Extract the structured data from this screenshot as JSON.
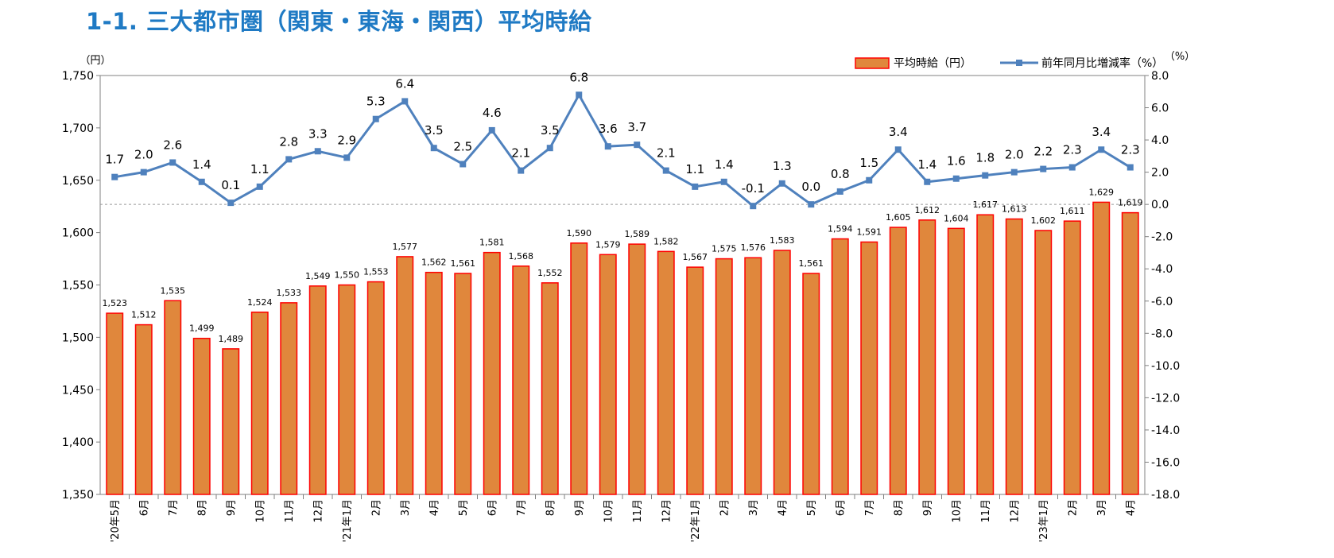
{
  "title": "1-1. 三大都市圏（関東・東海・関西）平均時給",
  "colors": {
    "title": "#1f7ac4",
    "bar_fill": "#e0873c",
    "bar_stroke": "#ff0000",
    "line": "#4f81bd",
    "zero_line": "#999999"
  },
  "chart_data": {
    "type": "bar",
    "title": "",
    "y_left_unit": "（円）",
    "y_right_unit": "（%）",
    "ylim_left": [
      1350,
      1750
    ],
    "ylim_right": [
      -18.0,
      8.0
    ],
    "y_left_ticks": [
      "1,350",
      "1,400",
      "1,450",
      "1,500",
      "1,550",
      "1,600",
      "1,650",
      "1,700",
      "1,750"
    ],
    "y_right_ticks": [
      "-18.0",
      "-16.0",
      "-14.0",
      "-12.0",
      "-10.0",
      "-8.0",
      "-6.0",
      "-4.0",
      "-2.0",
      "0.0",
      "2.0",
      "4.0",
      "6.0",
      "8.0"
    ],
    "legend_position": "top-right",
    "categories": [
      "'20年5月",
      "6月",
      "7月",
      "8月",
      "9月",
      "10月",
      "11月",
      "12月",
      "'21年1月",
      "2月",
      "3月",
      "4月",
      "5月",
      "6月",
      "7月",
      "8月",
      "9月",
      "10月",
      "11月",
      "12月",
      "'22年1月",
      "2月",
      "3月",
      "4月",
      "5月",
      "6月",
      "7月",
      "8月",
      "9月",
      "10月",
      "11月",
      "12月",
      "'23年1月",
      "2月",
      "3月",
      "4月"
    ],
    "series": [
      {
        "name": "平均時給（円）",
        "type": "bar",
        "axis": "left",
        "values": [
          1523,
          1512,
          1535,
          1499,
          1489,
          1524,
          1533,
          1549,
          1550,
          1553,
          1577,
          1562,
          1561,
          1581,
          1568,
          1552,
          1590,
          1579,
          1589,
          1582,
          1567,
          1575,
          1576,
          1583,
          1561,
          1594,
          1591,
          1605,
          1612,
          1604,
          1617,
          1613,
          1602,
          1611,
          1629,
          1619
        ],
        "labels": [
          "1,523",
          "1,512",
          "1,535",
          "1,499",
          "1,489",
          "1,524",
          "1,533",
          "1,549",
          "1,550",
          "1,553",
          "1,577",
          "1,562",
          "1,561",
          "1,581",
          "1,568",
          "1,552",
          "1,590",
          "1,579",
          "1,589",
          "1,582",
          "1,567",
          "1,575",
          "1,576",
          "1,583",
          "1,561",
          "1,594",
          "1,591",
          "1,605",
          "1,612",
          "1,604",
          "1,617",
          "1,613",
          "1,602",
          "1,611",
          "1,629",
          "1,619"
        ]
      },
      {
        "name": "前年同月比増減率（%）",
        "type": "line",
        "axis": "right",
        "values": [
          1.7,
          2.0,
          2.6,
          1.4,
          0.1,
          1.1,
          2.8,
          3.3,
          2.9,
          5.3,
          6.4,
          3.5,
          2.5,
          4.6,
          2.1,
          3.5,
          6.8,
          3.6,
          3.7,
          2.1,
          1.1,
          1.4,
          -0.1,
          1.3,
          0.0,
          0.8,
          1.5,
          3.4,
          1.4,
          1.6,
          1.8,
          2.0,
          2.2,
          2.3,
          3.4,
          2.3
        ],
        "labels": [
          "1.7",
          "2.0",
          "2.6",
          "1.4",
          "0.1",
          "1.1",
          "2.8",
          "3.3",
          "2.9",
          "5.3",
          "6.4",
          "3.5",
          "2.5",
          "4.6",
          "2.1",
          "3.5",
          "6.8",
          "3.6",
          "3.7",
          "2.1",
          "1.1",
          "1.4",
          "-0.1",
          "1.3",
          "0.0",
          "0.8",
          "1.5",
          "3.4",
          "1.4",
          "1.6",
          "1.8",
          "2.0",
          "2.2",
          "2.3",
          "3.4",
          "2.3"
        ]
      }
    ]
  }
}
